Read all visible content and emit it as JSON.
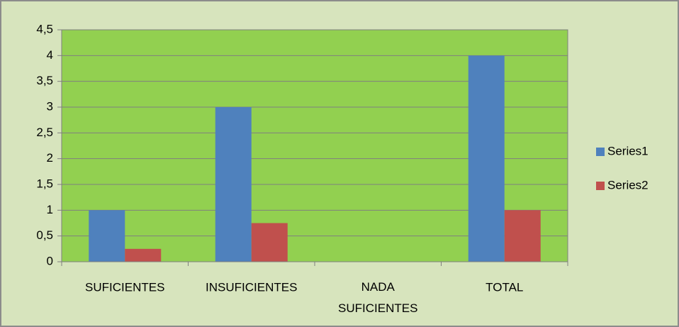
{
  "chart_data": {
    "type": "bar",
    "categories": [
      "SUFICIENTES",
      "INSUFICIENTES",
      "NADA SUFICIENTES",
      "TOTAL"
    ],
    "series": [
      {
        "name": "Series1",
        "color": "#4f81bd",
        "values": [
          1,
          3,
          0,
          4
        ]
      },
      {
        "name": "Series2",
        "color": "#c0504d",
        "values": [
          0.25,
          0.75,
          0,
          1
        ]
      }
    ],
    "ylim": [
      0,
      4.5
    ],
    "yticks": [
      0,
      {
        "value": 0.5,
        "label": "0,5"
      },
      1,
      {
        "value": 1.5,
        "label": "1,5"
      },
      2,
      {
        "value": 2.5,
        "label": "2,5"
      },
      3,
      {
        "value": 3.5,
        "label": "3,5"
      },
      4,
      {
        "value": 4.5,
        "label": "4,5"
      }
    ],
    "grid": true,
    "legend": "right"
  }
}
